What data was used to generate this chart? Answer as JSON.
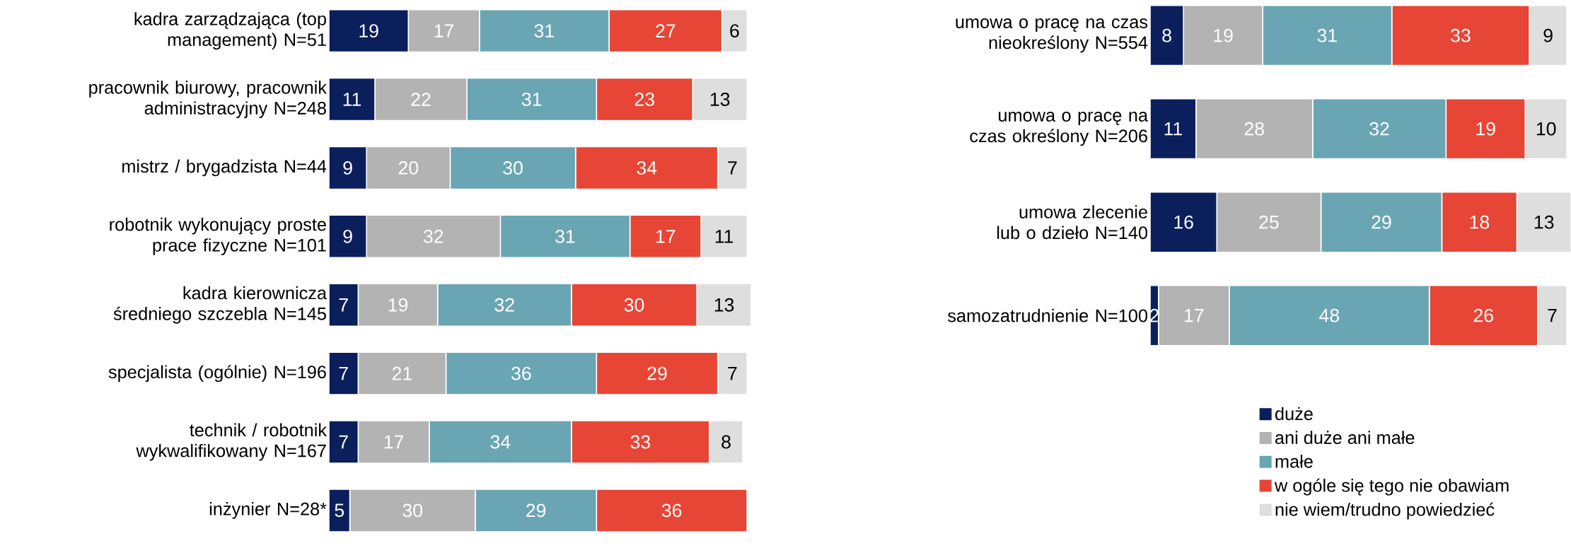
{
  "chart_data": [
    {
      "type": "bar",
      "orientation": "horizontal",
      "stacked": true,
      "data_labels": true,
      "legend": false,
      "tick_labels": "y",
      "categories": [
        "kadra zarządzająca (top management) N=51",
        "pracownik biurowy, pracownik administracyjny N=248",
        "mistrz / brygadzista N=44",
        "robotnik wykonujący proste prace fizyczne N=101",
        "kadra kierownicza średniego szczebla N=145",
        "specjalista (ogólnie) N=196",
        "technik / robotnik wykwalifikowany N=167",
        "inżynier N=28*"
      ],
      "series": [
        {
          "color": "#0b1f5c",
          "values": [
            19,
            11,
            9,
            9,
            7,
            7,
            7,
            5
          ]
        },
        {
          "color": "#b3b3b3",
          "values": [
            17,
            22,
            20,
            32,
            19,
            21,
            17,
            30
          ]
        },
        {
          "color": "#6aa5b4",
          "values": [
            31,
            31,
            30,
            31,
            32,
            36,
            34,
            29
          ]
        },
        {
          "color": "#e74536",
          "values": [
            27,
            23,
            34,
            17,
            30,
            29,
            33,
            36
          ]
        },
        {
          "color": "#dedede",
          "values": [
            6,
            13,
            7,
            11,
            13,
            7,
            8,
            null
          ]
        }
      ]
    },
    {
      "type": "bar",
      "orientation": "horizontal",
      "stacked": true,
      "data_labels": true,
      "legend": "bottom right",
      "tick_labels": "y",
      "categories": [
        "umowa o pracę na czas nieokreślony N=554",
        "umowa o pracę na czas określony N=206",
        "umowa zlecenie lub o dzieło N=140",
        "samozatrudnienie N=100"
      ],
      "series": [
        {
          "name": "duże",
          "color": "#0b1f5c",
          "values": [
            8,
            11,
            16,
            2
          ]
        },
        {
          "name": "ani duże ani małe",
          "color": "#b3b3b3",
          "values": [
            19,
            28,
            25,
            17
          ]
        },
        {
          "name": "małe",
          "color": "#6aa5b4",
          "values": [
            31,
            32,
            29,
            48
          ]
        },
        {
          "name": "w ogóle się tego nie obawiam",
          "color": "#e74536",
          "values": [
            33,
            19,
            18,
            26
          ]
        },
        {
          "name": "nie wiem/trudno powiedzieć",
          "color": "#dedede",
          "values": [
            9,
            10,
            13,
            7
          ]
        }
      ]
    }
  ]
}
